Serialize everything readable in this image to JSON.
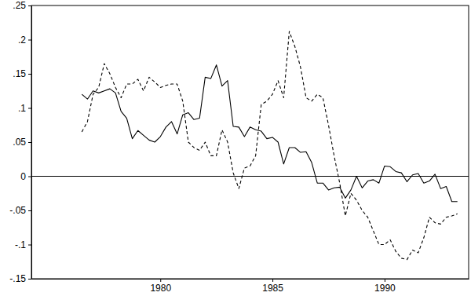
{
  "chart_data": {
    "type": "line",
    "x": [
      1976.5,
      1976.75,
      1977,
      1977.25,
      1977.5,
      1977.75,
      1978,
      1978.25,
      1978.5,
      1978.75,
      1979,
      1979.25,
      1979.5,
      1979.75,
      1980,
      1980.25,
      1980.5,
      1980.75,
      1981,
      1981.25,
      1981.5,
      1981.75,
      1982,
      1982.25,
      1982.5,
      1982.75,
      1983,
      1983.25,
      1983.5,
      1983.75,
      1984,
      1984.25,
      1984.5,
      1984.75,
      1985,
      1985.25,
      1985.5,
      1985.75,
      1986,
      1986.25,
      1986.5,
      1986.75,
      1987,
      1987.25,
      1987.5,
      1987.75,
      1988,
      1988.25,
      1988.5,
      1988.75,
      1989,
      1989.25,
      1989.5,
      1989.75,
      1990,
      1990.25,
      1990.5,
      1990.75,
      1991,
      1991.25,
      1991.5,
      1991.75,
      1992,
      1992.25,
      1992.5,
      1992.75,
      1993,
      1993.25
    ],
    "series": [
      {
        "color": "#000000",
        "line_style": "solid",
        "values": [
          0.12,
          0.113,
          0.125,
          0.122,
          0.125,
          0.128,
          0.122,
          0.095,
          0.085,
          0.055,
          0.067,
          0.06,
          0.053,
          0.05,
          0.058,
          0.072,
          0.08,
          0.062,
          0.09,
          0.093,
          0.083,
          0.085,
          0.145,
          0.143,
          0.163,
          0.132,
          0.14,
          0.073,
          0.072,
          0.058,
          0.072,
          0.068,
          0.066,
          0.055,
          0.057,
          0.05,
          0.018,
          0.042,
          0.042,
          0.035,
          0.036,
          0.02,
          -0.01,
          -0.01,
          -0.02,
          -0.017,
          -0.016,
          -0.032,
          -0.02,
          0,
          -0.017,
          -0.007,
          -0.005,
          -0.01,
          0.015,
          0.014,
          0.007,
          0.005,
          -0.008,
          0.002,
          0.004,
          -0.01,
          -0.007,
          0.003,
          -0.018,
          -0.015,
          -0.037,
          -0.037
        ]
      },
      {
        "color": "#000000",
        "line_style": "dashed",
        "values": [
          0.065,
          0.08,
          0.12,
          0.13,
          0.165,
          0.15,
          0.13,
          0.115,
          0.135,
          0.135,
          0.142,
          0.125,
          0.145,
          0.138,
          0.13,
          0.133,
          0.135,
          0.135,
          0.11,
          0.05,
          0.042,
          0.038,
          0.05,
          0.03,
          0.03,
          0.068,
          0.05,
          0.005,
          -0.018,
          0.012,
          0.015,
          0.03,
          0.105,
          0.11,
          0.12,
          0.14,
          0.115,
          0.212,
          0.19,
          0.16,
          0.115,
          0.11,
          0.12,
          0.115,
          0.075,
          0.03,
          -0.01,
          -0.058,
          -0.025,
          -0.035,
          -0.05,
          -0.06,
          -0.08,
          -0.1,
          -0.1,
          -0.093,
          -0.11,
          -0.12,
          -0.122,
          -0.108,
          -0.112,
          -0.09,
          -0.06,
          -0.068,
          -0.07,
          -0.06,
          -0.058,
          -0.055
        ]
      }
    ],
    "xlim": [
      1974.25,
      1993.75
    ],
    "xticks": [
      1980,
      1985,
      1990
    ],
    "ylim": [
      -0.15,
      0.25
    ],
    "yticks": [
      {
        "value": -0.15,
        "label": "-.15"
      },
      {
        "value": -0.1,
        "label": "-.1"
      },
      {
        "value": -0.05,
        "label": "-.05"
      },
      0,
      {
        "value": 0.05,
        "label": ".05"
      },
      {
        "value": 0.1,
        "label": ".1"
      },
      {
        "value": 0.15,
        "label": ".15"
      },
      {
        "value": 0.2,
        "label": ".2"
      },
      {
        "value": 0.25,
        "label": ".25"
      }
    ]
  }
}
